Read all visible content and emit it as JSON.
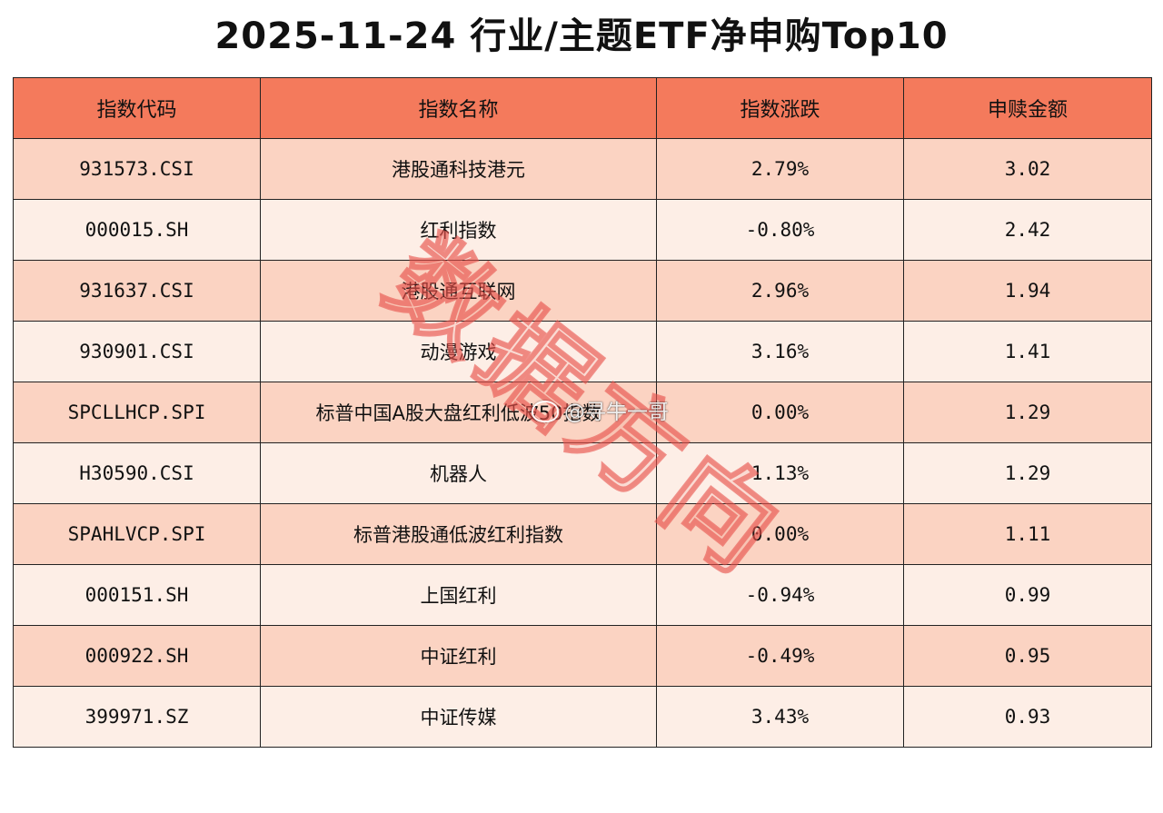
{
  "chart_data": {
    "type": "table",
    "title": "2025-11-24 行业/主题ETF净申购Top10",
    "columns": [
      "指数代码",
      "指数名称",
      "指数涨跌",
      "申赎金额"
    ],
    "rows": [
      {
        "code": "931573.CSI",
        "name": "港股通科技港元",
        "change": "2.79%",
        "amount": "3.02"
      },
      {
        "code": "000015.SH",
        "name": "红利指数",
        "change": "-0.80%",
        "amount": "2.42"
      },
      {
        "code": "931637.CSI",
        "name": "港股通互联网",
        "change": "2.96%",
        "amount": "1.94"
      },
      {
        "code": "930901.CSI",
        "name": "动漫游戏",
        "change": "3.16%",
        "amount": "1.41"
      },
      {
        "code": "SPCLLHCP.SPI",
        "name": "标普中国A股大盘红利低波50指数",
        "change": "0.00%",
        "amount": "1.29"
      },
      {
        "code": "H30590.CSI",
        "name": "机器人",
        "change": "1.13%",
        "amount": "1.29"
      },
      {
        "code": "SPAHLVCP.SPI",
        "name": "标普港股通低波红利指数",
        "change": "0.00%",
        "amount": "1.11"
      },
      {
        "code": "000151.SH",
        "name": "上国红利",
        "change": "-0.94%",
        "amount": "0.99"
      },
      {
        "code": "000922.SH",
        "name": "中证红利",
        "change": "-0.49%",
        "amount": "0.95"
      },
      {
        "code": "399971.SZ",
        "name": "中证传媒",
        "change": "3.43%",
        "amount": "0.93"
      }
    ]
  },
  "watermark": {
    "text": "数据方向",
    "color": "#e8504a"
  },
  "credit": {
    "text": "@寻牛一哥",
    "icon": "weibo-icon"
  },
  "colors": {
    "header": "#f47a5c",
    "row_odd": "#fbd3c2",
    "row_even": "#fdeee6",
    "border": "#222222"
  }
}
